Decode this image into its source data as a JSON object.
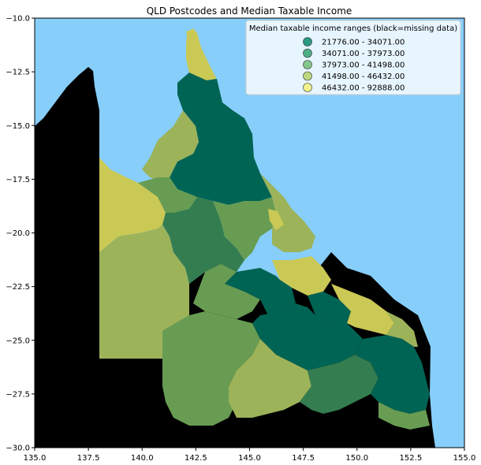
{
  "title": "QLD Postcodes and Median Taxable Income",
  "axes": {
    "x_ticks": [
      "135.0",
      "137.5",
      "140.0",
      "142.5",
      "145.0",
      "147.5",
      "150.0",
      "152.5",
      "155.0"
    ],
    "y_ticks": [
      "−10.0",
      "−12.5",
      "−15.0",
      "−17.5",
      "−20.0",
      "−22.5",
      "−25.0",
      "−27.5",
      "−30.0"
    ],
    "xlim": [
      135.0,
      155.0
    ],
    "ylim": [
      -30.0,
      -10.0
    ]
  },
  "legend": {
    "title": "Median taxable income ranges (black=missing data)",
    "placement": "top-right",
    "entries": [
      {
        "label": "21776.00 - 34071.00",
        "color": "#2a9a83"
      },
      {
        "label": "34071.00 - 37973.00",
        "color": "#4fae86"
      },
      {
        "label": "37973.00 - 41498.00",
        "color": "#85c78a"
      },
      {
        "label": "41498.00 - 46432.00",
        "color": "#bcd97f"
      },
      {
        "label": "46432.00 - 92888.00",
        "color": "#f1f28a"
      }
    ]
  },
  "colors": {
    "ocean": "#87cefa",
    "missing": "#000000",
    "class1": "#006454",
    "class2": "#347d50",
    "class3": "#689c52",
    "class4": "#9cb35a",
    "class5": "#cbc955"
  }
}
